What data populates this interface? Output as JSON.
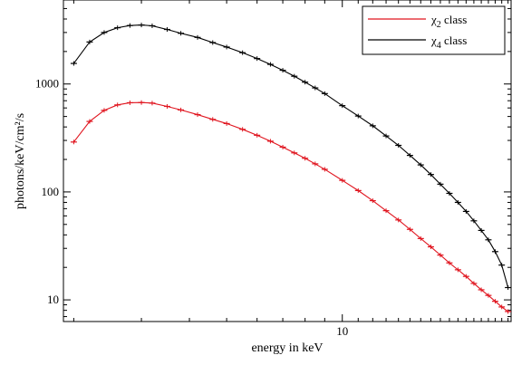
{
  "chart_data": {
    "type": "line",
    "title": "",
    "xlabel": "energy in keV",
    "ylabel": "photons/keV/cm²/s",
    "xscale": "log",
    "yscale": "log",
    "xlim": [
      1.88,
      27.5
    ],
    "ylim": [
      6.3,
      6000
    ],
    "x_ticks": [
      {
        "value": 10,
        "label": "10"
      }
    ],
    "y_ticks": [
      {
        "value": 10,
        "label": "10"
      },
      {
        "value": 100,
        "label": "100"
      },
      {
        "value": 1000,
        "label": "1000"
      }
    ],
    "grid": false,
    "legend_position": "top-right",
    "error_bars": true,
    "series": [
      {
        "name": "χ₂ class",
        "name_base": "χ",
        "name_sub": "2",
        "name_rest": " class",
        "color": "#e0141e",
        "points": [
          [
            2.0,
            290
          ],
          [
            2.2,
            450
          ],
          [
            2.4,
            570
          ],
          [
            2.6,
            640
          ],
          [
            2.8,
            670
          ],
          [
            3.0,
            673
          ],
          [
            3.2,
            665
          ],
          [
            3.5,
            620
          ],
          [
            3.8,
            575
          ],
          [
            4.2,
            520
          ],
          [
            4.6,
            470
          ],
          [
            5.0,
            430
          ],
          [
            5.5,
            380
          ],
          [
            6.0,
            335
          ],
          [
            6.5,
            295
          ],
          [
            7.0,
            260
          ],
          [
            7.5,
            230
          ],
          [
            8.0,
            205
          ],
          [
            8.5,
            182
          ],
          [
            9.0,
            162
          ],
          [
            10.0,
            128
          ],
          [
            11.0,
            103
          ],
          [
            12.0,
            83
          ],
          [
            13.0,
            67
          ],
          [
            14.0,
            55
          ],
          [
            15.0,
            45
          ],
          [
            16.0,
            37
          ],
          [
            17.0,
            31
          ],
          [
            18.0,
            26
          ],
          [
            19.0,
            22
          ],
          [
            20.0,
            19
          ],
          [
            21.0,
            16.5
          ],
          [
            22.0,
            14.2
          ],
          [
            23.0,
            12.4
          ],
          [
            24.0,
            11.0
          ],
          [
            25.0,
            9.7
          ],
          [
            26.0,
            8.6
          ],
          [
            27.0,
            7.8
          ]
        ]
      },
      {
        "name": "χ₄ class",
        "name_base": "χ",
        "name_sub": "4",
        "name_rest": " class",
        "color": "#000000",
        "points": [
          [
            2.0,
            1550
          ],
          [
            2.2,
            2450
          ],
          [
            2.4,
            3000
          ],
          [
            2.6,
            3320
          ],
          [
            2.8,
            3480
          ],
          [
            3.0,
            3520
          ],
          [
            3.2,
            3460
          ],
          [
            3.5,
            3200
          ],
          [
            3.8,
            2950
          ],
          [
            4.2,
            2700
          ],
          [
            4.6,
            2420
          ],
          [
            5.0,
            2200
          ],
          [
            5.5,
            1950
          ],
          [
            6.0,
            1720
          ],
          [
            6.5,
            1520
          ],
          [
            7.0,
            1340
          ],
          [
            7.5,
            1180
          ],
          [
            8.0,
            1040
          ],
          [
            8.5,
            920
          ],
          [
            9.0,
            815
          ],
          [
            10.0,
            630
          ],
          [
            11.0,
            505
          ],
          [
            12.0,
            410
          ],
          [
            13.0,
            330
          ],
          [
            14.0,
            270
          ],
          [
            15.0,
            218
          ],
          [
            16.0,
            178
          ],
          [
            17.0,
            145
          ],
          [
            18.0,
            118
          ],
          [
            19.0,
            97
          ],
          [
            20.0,
            80
          ],
          [
            21.0,
            66
          ],
          [
            22.0,
            54
          ],
          [
            23.0,
            44
          ],
          [
            24.0,
            36
          ],
          [
            25.0,
            28
          ],
          [
            26.0,
            21
          ],
          [
            27.0,
            13
          ]
        ]
      }
    ]
  }
}
